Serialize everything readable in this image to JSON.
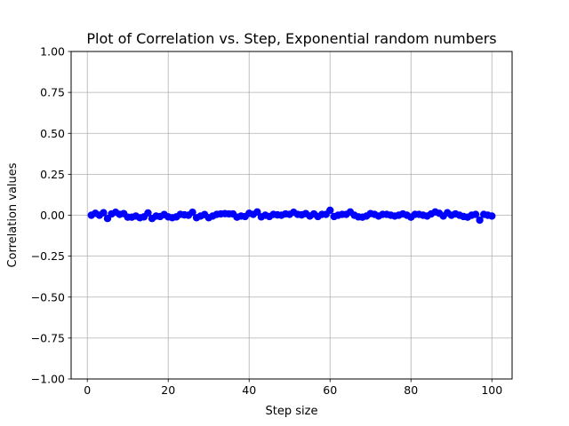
{
  "chart_data": {
    "type": "line",
    "title": "Plot of Correlation vs. Step, Exponential random numbers",
    "xlabel": "Step size",
    "ylabel": "Correlation values",
    "xlim": [
      -4,
      105
    ],
    "ylim": [
      -1.0,
      1.0
    ],
    "xticks": [
      0,
      20,
      40,
      60,
      80,
      100
    ],
    "xtick_labels": [
      "0",
      "20",
      "40",
      "60",
      "80",
      "100"
    ],
    "yticks": [
      -1.0,
      -0.75,
      -0.5,
      -0.25,
      0.0,
      0.25,
      0.5,
      0.75,
      1.0
    ],
    "ytick_labels": [
      "−1.00",
      "−0.75",
      "−0.50",
      "−0.25",
      "0.00",
      "0.25",
      "0.50",
      "0.75",
      "1.00"
    ],
    "grid": true,
    "series": [
      {
        "color": "#0000ff",
        "marker": "circle",
        "x": [
          1,
          2,
          3,
          4,
          5,
          6,
          7,
          8,
          9,
          10,
          11,
          12,
          13,
          14,
          15,
          16,
          17,
          18,
          19,
          20,
          21,
          22,
          23,
          24,
          25,
          26,
          27,
          28,
          29,
          30,
          31,
          32,
          33,
          34,
          35,
          36,
          37,
          38,
          39,
          40,
          41,
          42,
          43,
          44,
          45,
          46,
          47,
          48,
          49,
          50,
          51,
          52,
          53,
          54,
          55,
          56,
          57,
          58,
          59,
          60,
          61,
          62,
          63,
          64,
          65,
          66,
          67,
          68,
          69,
          70,
          71,
          72,
          73,
          74,
          75,
          76,
          77,
          78,
          79,
          80,
          81,
          82,
          83,
          84,
          85,
          86,
          87,
          88,
          89,
          90,
          91,
          92,
          93,
          94,
          95,
          96,
          97,
          98,
          99,
          100
        ],
        "y": [
          0.0,
          0.012,
          0.0,
          0.015,
          -0.02,
          0.008,
          0.018,
          0.005,
          0.01,
          -0.012,
          -0.012,
          -0.005,
          -0.015,
          -0.01,
          0.014,
          -0.02,
          -0.005,
          -0.008,
          0.004,
          -0.01,
          -0.015,
          -0.01,
          0.005,
          0.002,
          0.0,
          0.018,
          -0.015,
          -0.005,
          0.004,
          -0.015,
          -0.005,
          0.005,
          0.008,
          0.01,
          0.008,
          0.008,
          -0.012,
          -0.005,
          -0.008,
          0.012,
          0.005,
          0.02,
          -0.01,
          0.0,
          -0.008,
          0.005,
          0.002,
          0.0,
          0.008,
          0.005,
          0.018,
          0.005,
          0.002,
          0.01,
          -0.005,
          0.008,
          -0.008,
          0.005,
          0.005,
          0.03,
          -0.008,
          0.0,
          0.005,
          0.005,
          0.02,
          0.0,
          -0.01,
          -0.012,
          -0.005,
          0.01,
          0.005,
          -0.005,
          0.005,
          0.005,
          0.0,
          -0.005,
          0.0,
          0.008,
          0.0,
          -0.012,
          0.005,
          0.005,
          0.0,
          -0.005,
          0.008,
          0.02,
          0.012,
          -0.005,
          0.015,
          0.0,
          0.008,
          0.0,
          -0.008,
          -0.012,
          0.0,
          0.005,
          -0.03,
          0.005,
          0.0,
          -0.005
        ]
      }
    ]
  }
}
